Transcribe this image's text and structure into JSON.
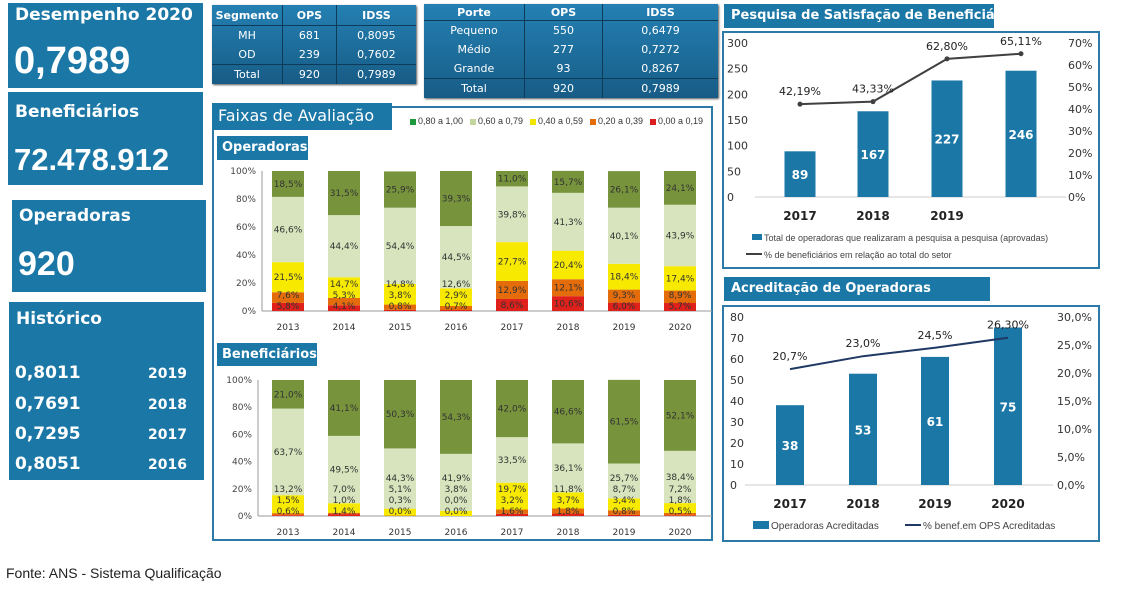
{
  "kpis": {
    "desempenho": {
      "title": "Desempenho 2020",
      "value": "0,7989"
    },
    "beneficiarios": {
      "title": "Beneficiários",
      "value": "72.478.912"
    },
    "operadoras": {
      "title": "Operadoras",
      "value": "920"
    },
    "historico": {
      "title": "Histórico",
      "rows": [
        {
          "value": "0,8011",
          "year": "2019"
        },
        {
          "value": "0,7691",
          "year": "2018"
        },
        {
          "value": "0,7295",
          "year": "2017"
        },
        {
          "value": "0,8051",
          "year": "2016"
        }
      ]
    }
  },
  "segment_table": {
    "headers": [
      "Segmento",
      "OPS",
      "IDSS"
    ],
    "rows": [
      [
        "MH",
        "681",
        "0,8095"
      ],
      [
        "OD",
        "239",
        "0,7602"
      ],
      [
        "Total",
        "920",
        "0,7989"
      ]
    ]
  },
  "size_table": {
    "headers": [
      "Porte",
      "OPS",
      "IDSS"
    ],
    "rows": [
      [
        "Pequeno",
        "550",
        "0,6479"
      ],
      [
        "Médio",
        "277",
        "0,7272"
      ],
      [
        "Grande",
        "93",
        "0,8267"
      ],
      [
        "Total",
        "920",
        "0,7989"
      ]
    ]
  },
  "faixas": {
    "title": "Faixas de Avaliação",
    "legend": [
      {
        "label": "0,80 a 1,00",
        "color": "#1e9a3a"
      },
      {
        "label": "0,60 a 0,79",
        "color": "#c3d69b"
      },
      {
        "label": "0,40 a 0,59",
        "color": "#f2e600"
      },
      {
        "label": "0,20 a 0,39",
        "color": "#e46c0a"
      },
      {
        "label": "0,00 a 0,19",
        "color": "#d9201f"
      }
    ]
  },
  "chart_data": [
    {
      "type": "bar",
      "stacked": true,
      "title": "Operadoras",
      "categories": [
        "2013",
        "2014",
        "2015",
        "2016",
        "2017",
        "2018",
        "2019",
        "2020"
      ],
      "ylim": [
        0,
        100
      ],
      "yticks": [
        "0%",
        "20%",
        "40%",
        "60%",
        "80%",
        "100%"
      ],
      "series": [
        {
          "name": "0,00 a 0,19",
          "color": "#e0201b",
          "values": [
            5.8,
            4.1,
            0.8,
            0.7,
            8.6,
            10.6,
            6.0,
            5.7
          ]
        },
        {
          "name": "0,20 a 0,39",
          "color": "#e46c0a",
          "values": [
            7.6,
            5.3,
            3.8,
            2.9,
            12.9,
            12.1,
            9.3,
            8.9
          ]
        },
        {
          "name": "0,40 a 0,59",
          "color": "#f7ea00",
          "values": [
            21.5,
            14.7,
            14.8,
            12.6,
            27.7,
            20.4,
            18.4,
            17.4
          ]
        },
        {
          "name": "0,60 a 0,79",
          "color": "#d7e4bd",
          "values": [
            46.6,
            44.4,
            54.4,
            44.5,
            39.8,
            41.3,
            40.1,
            43.9
          ]
        },
        {
          "name": "0,80 a 1,00",
          "color": "#77933c",
          "values": [
            18.5,
            31.5,
            25.9,
            39.3,
            11.0,
            15.7,
            26.1,
            24.1
          ]
        }
      ]
    },
    {
      "type": "bar",
      "stacked": true,
      "title": "Beneficiários",
      "categories": [
        "2013",
        "2014",
        "2015",
        "2016",
        "2017",
        "2018",
        "2019",
        "2020"
      ],
      "ylim": [
        0,
        100
      ],
      "yticks": [
        "0%",
        "20%",
        "40%",
        "60%",
        "80%",
        "100%"
      ],
      "series": [
        {
          "name": "0,00 a 0,19",
          "color": "#e0201b",
          "values": [
            0.6,
            1.4,
            0.0,
            0.0,
            1.6,
            1.8,
            0.8,
            0.5
          ]
        },
        {
          "name": "0,20 a 0,39",
          "color": "#e46c0a",
          "values": [
            1.5,
            1.0,
            0.3,
            0.0,
            3.2,
            3.7,
            3.4,
            1.8
          ]
        },
        {
          "name": "0,40 a 0,59",
          "color": "#f7ea00",
          "values": [
            13.2,
            7.0,
            5.1,
            3.8,
            19.7,
            11.8,
            8.7,
            7.2
          ]
        },
        {
          "name": "0,60 a 0,79",
          "color": "#d7e4bd",
          "values": [
            63.7,
            49.5,
            44.3,
            41.9,
            33.5,
            36.1,
            25.7,
            38.4
          ]
        },
        {
          "name": "0,80 a 1,00",
          "color": "#77933c",
          "values": [
            21.0,
            41.1,
            50.3,
            54.3,
            42.0,
            46.6,
            61.5,
            52.1
          ]
        }
      ]
    },
    {
      "type": "bar+line",
      "title": "Pesquisa de Satisfação de Beneficiários",
      "categories": [
        "2017",
        "2018",
        "2019",
        ""
      ],
      "ylim": [
        0,
        300
      ],
      "yticks": [
        "0",
        "50",
        "100",
        "150",
        "200",
        "250",
        "300"
      ],
      "y2lim": [
        0,
        70
      ],
      "y2ticks": [
        "0%",
        "10%",
        "20%",
        "30%",
        "40%",
        "50%",
        "60%",
        "70%"
      ],
      "bars": {
        "name": "Total de operadoras que realizaram a pesquisa a pesquisa (aprovadas)",
        "color": "#1a77a6",
        "values": [
          89,
          167,
          227,
          246
        ]
      },
      "line": {
        "name": "% de beneficiários em relação ao total do setor",
        "color": "#404040",
        "values": [
          42.19,
          43.33,
          62.8,
          65.11
        ],
        "labels": [
          "42,19%",
          "43,33%",
          "62,80%",
          "65,11%"
        ],
        "markers": true
      }
    },
    {
      "type": "bar+line",
      "title": "Acreditação de Operadoras",
      "categories": [
        "2017",
        "2018",
        "2019",
        "2020"
      ],
      "ylim": [
        0,
        80
      ],
      "yticks": [
        "0",
        "10",
        "20",
        "30",
        "40",
        "50",
        "60",
        "70",
        "80"
      ],
      "y2lim": [
        0,
        30
      ],
      "y2ticks": [
        "0,0%",
        "5,0%",
        "10,0%",
        "15,0%",
        "20,0%",
        "25,0%",
        "30,0%"
      ],
      "bars": {
        "name": "Operadoras Acreditadas",
        "color": "#1a77a6",
        "values": [
          38,
          53,
          61,
          75
        ]
      },
      "line": {
        "name": "% benef.em OPS Acreditadas",
        "color": "#1f3864",
        "values": [
          20.7,
          23.0,
          24.5,
          26.3
        ],
        "labels": [
          "20,7%",
          "23,0%",
          "24,5%",
          "26,30%"
        ],
        "markers": false
      }
    }
  ],
  "footer": "Fonte: ANS - Sistema Qualificação"
}
